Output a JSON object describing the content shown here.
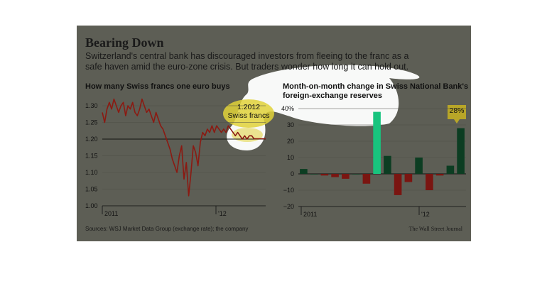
{
  "headline": "Bearing Down",
  "dek": [
    "Switzerland's central bank has discouraged investors from fleeing to the franc as a",
    "safe haven amid the euro-zone crisis. But traders wonder how long it can hold out."
  ],
  "source": "Sources: WSJ Market Data Group (exchange rate); the company",
  "credit": "The Wall Street Journal",
  "colors": {
    "panel": "#5d5e55",
    "line": "#8b1a12",
    "bar_pos": "#0c3d22",
    "bar_neg": "#7a1511",
    "bar_highlight": "#18c47e",
    "highlight_glow": "#e0d23a",
    "white_blob": "#ffffff"
  },
  "chart_data": [
    {
      "type": "line",
      "title": "How many Swiss francs one euro buys",
      "ylim": [
        1.0,
        1.3
      ],
      "yticks": [
        "1.30",
        "1.25",
        "1.20",
        "1.15",
        "1.10",
        "1.05",
        "1.00"
      ],
      "xticks": [
        "2011",
        "'12"
      ],
      "reference_line": 1.2,
      "annotation": {
        "lines": [
          "1.2012",
          "Swiss francs"
        ],
        "value": 1.2012
      },
      "series": [
        {
          "values": [
            1.28,
            1.25,
            1.29,
            1.31,
            1.29,
            1.32,
            1.3,
            1.28,
            1.3,
            1.31,
            1.27,
            1.3,
            1.29,
            1.31,
            1.28,
            1.27,
            1.29,
            1.32,
            1.3,
            1.28,
            1.29,
            1.27,
            1.25,
            1.28,
            1.26,
            1.24,
            1.23,
            1.21,
            1.19,
            1.17,
            1.14,
            1.12,
            1.1,
            1.15,
            1.18,
            1.08,
            1.13,
            1.03,
            1.1,
            1.18,
            1.16,
            1.12,
            1.19,
            1.22,
            1.21,
            1.23,
            1.22,
            1.24,
            1.22,
            1.24,
            1.23,
            1.22,
            1.23,
            1.22,
            1.24,
            1.23,
            1.22,
            1.21,
            1.22,
            1.21,
            1.2,
            1.21,
            1.2,
            1.21,
            1.21,
            1.201,
            1.201,
            1.201,
            1.201,
            1.201,
            1.201
          ]
        }
      ]
    },
    {
      "type": "bar",
      "title": [
        "Month-on-month change in Swiss National Bank's",
        "foreign-exchange reserves"
      ],
      "ylim": [
        -20,
        40
      ],
      "yticks": [
        "40%",
        "30",
        "20",
        "10",
        "0",
        "−10",
        "−20"
      ],
      "xticks": [
        "2011",
        "'12"
      ],
      "callout": "28%",
      "values": [
        3,
        0,
        -1,
        -2,
        -3,
        0,
        -6,
        38,
        11,
        -13,
        -5,
        10,
        -10,
        -1,
        5,
        28
      ],
      "highlight_index": 7
    }
  ]
}
